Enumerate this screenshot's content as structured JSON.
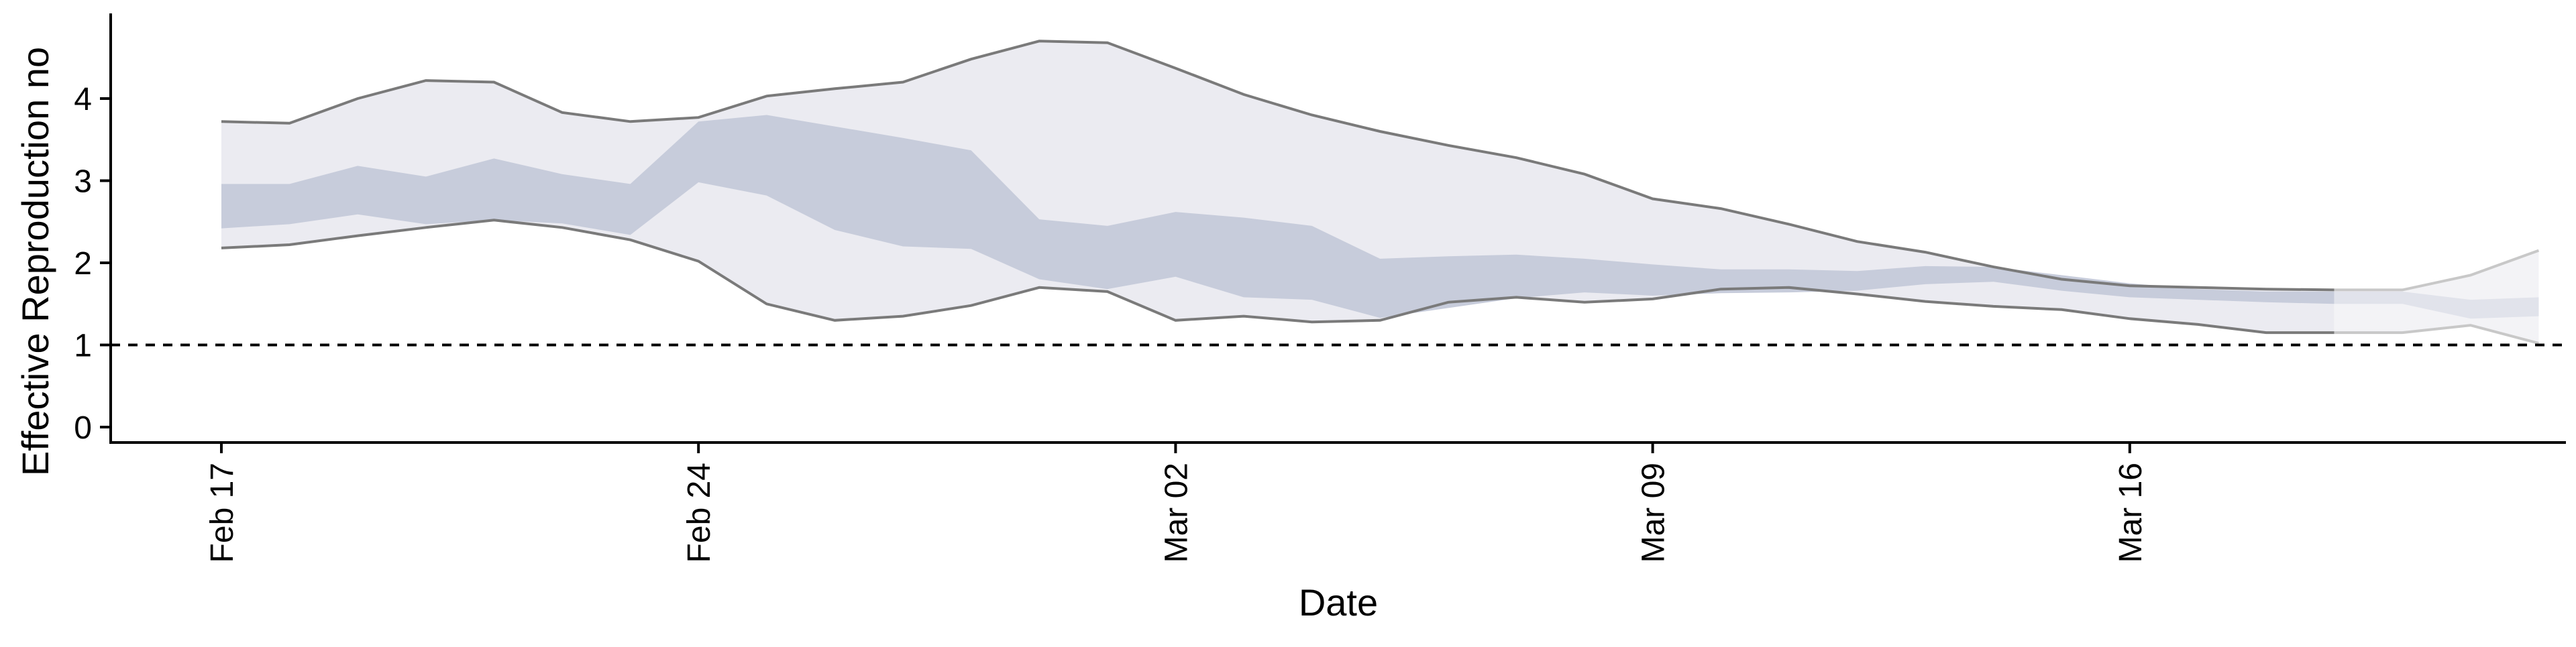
{
  "chart_data": {
    "type": "area",
    "title": "",
    "xlabel": "Date",
    "ylabel": "Effective Reproduction no",
    "x_axis": {
      "type": "date",
      "range": [
        "2020-02-16",
        "2020-03-24"
      ],
      "ticks": [
        {
          "date": "2020-02-17",
          "label": "Feb 17"
        },
        {
          "date": "2020-02-24",
          "label": "Feb 24"
        },
        {
          "date": "2020-03-02",
          "label": "Mar 02"
        },
        {
          "date": "2020-03-09",
          "label": "Mar 09"
        },
        {
          "date": "2020-03-16",
          "label": "Mar 16"
        }
      ]
    },
    "y_axis": {
      "range": [
        -0.2,
        5.0
      ],
      "ticks": [
        0,
        1,
        2,
        3,
        4
      ]
    },
    "grid": false,
    "legend": "none",
    "reference_line": {
      "y": 1,
      "style": "dashed",
      "color": "#000000"
    },
    "colors": {
      "outer_band": "#ebebf1",
      "inner_band": "#c7ccdb",
      "outer_band_edge": "#7a7a7a",
      "forecast_outer": "#f3f3f6",
      "forecast_inner": "#e1e3eb",
      "forecast_edge": "#c8c8c8"
    },
    "series": [
      {
        "role": "outer_interval",
        "x": [
          "2020-02-17",
          "2020-02-18",
          "2020-02-19",
          "2020-02-20",
          "2020-02-21",
          "2020-02-22",
          "2020-02-23",
          "2020-02-24",
          "2020-02-25",
          "2020-02-26",
          "2020-02-27",
          "2020-02-28",
          "2020-02-29",
          "2020-03-01",
          "2020-03-02",
          "2020-03-03",
          "2020-03-04",
          "2020-03-05",
          "2020-03-06",
          "2020-03-07",
          "2020-03-08",
          "2020-03-09",
          "2020-03-10",
          "2020-03-11",
          "2020-03-12",
          "2020-03-13",
          "2020-03-14",
          "2020-03-15",
          "2020-03-16",
          "2020-03-17",
          "2020-03-18",
          "2020-03-19"
        ],
        "upper": [
          3.72,
          3.7,
          4.0,
          4.22,
          4.2,
          3.83,
          3.72,
          3.77,
          4.03,
          4.12,
          4.2,
          4.48,
          4.7,
          4.68,
          4.37,
          4.05,
          3.8,
          3.6,
          3.43,
          3.28,
          3.08,
          2.78,
          2.66,
          2.47,
          2.26,
          2.13,
          1.95,
          1.8,
          1.72,
          1.7,
          1.68,
          1.67
        ],
        "lower": [
          2.18,
          2.22,
          2.33,
          2.43,
          2.52,
          2.43,
          2.28,
          2.02,
          1.5,
          1.3,
          1.35,
          1.48,
          1.7,
          1.65,
          1.3,
          1.35,
          1.28,
          1.3,
          1.52,
          1.58,
          1.52,
          1.56,
          1.68,
          1.7,
          1.62,
          1.53,
          1.47,
          1.43,
          1.32,
          1.25,
          1.15,
          1.15
        ]
      },
      {
        "role": "inner_interval",
        "x": [
          "2020-02-17",
          "2020-02-18",
          "2020-02-19",
          "2020-02-20",
          "2020-02-21",
          "2020-02-22",
          "2020-02-23",
          "2020-02-24",
          "2020-02-25",
          "2020-02-26",
          "2020-02-27",
          "2020-02-28",
          "2020-02-29",
          "2020-03-01",
          "2020-03-02",
          "2020-03-03",
          "2020-03-04",
          "2020-03-05",
          "2020-03-06",
          "2020-03-07",
          "2020-03-08",
          "2020-03-09",
          "2020-03-10",
          "2020-03-11",
          "2020-03-12",
          "2020-03-13",
          "2020-03-14",
          "2020-03-15",
          "2020-03-16",
          "2020-03-17",
          "2020-03-18",
          "2020-03-19"
        ],
        "upper": [
          2.96,
          2.96,
          3.18,
          3.05,
          3.27,
          3.08,
          2.96,
          3.72,
          3.8,
          3.66,
          3.52,
          3.37,
          2.53,
          2.45,
          2.62,
          2.55,
          2.45,
          2.05,
          2.08,
          2.1,
          2.05,
          1.98,
          1.92,
          1.92,
          1.9,
          1.96,
          1.95,
          1.85,
          1.75,
          1.68,
          1.65,
          1.65
        ],
        "lower": [
          2.42,
          2.47,
          2.59,
          2.47,
          2.52,
          2.48,
          2.34,
          2.98,
          2.82,
          2.4,
          2.2,
          2.17,
          1.8,
          1.68,
          1.83,
          1.58,
          1.55,
          1.33,
          1.45,
          1.57,
          1.64,
          1.6,
          1.63,
          1.64,
          1.66,
          1.74,
          1.77,
          1.66,
          1.58,
          1.55,
          1.52,
          1.5
        ]
      },
      {
        "role": "outer_interval_forecast",
        "x": [
          "2020-03-19",
          "2020-03-20",
          "2020-03-21",
          "2020-03-22"
        ],
        "upper": [
          1.67,
          1.67,
          1.85,
          2.15
        ],
        "lower": [
          1.15,
          1.15,
          1.24,
          1.02
        ]
      },
      {
        "role": "inner_interval_forecast",
        "x": [
          "2020-03-19",
          "2020-03-20",
          "2020-03-21",
          "2020-03-22"
        ],
        "upper": [
          1.65,
          1.65,
          1.55,
          1.58
        ],
        "lower": [
          1.5,
          1.5,
          1.32,
          1.35
        ]
      }
    ]
  }
}
